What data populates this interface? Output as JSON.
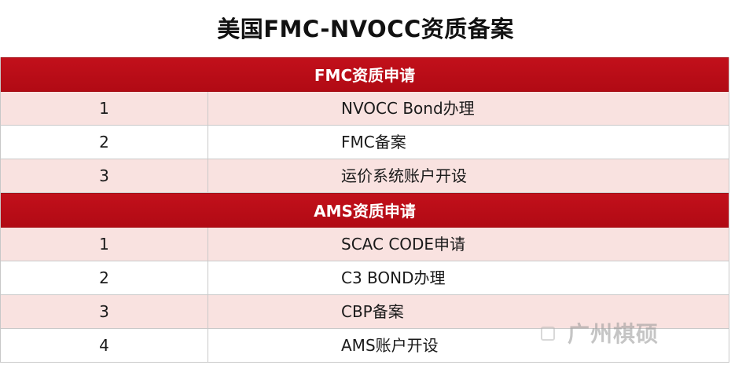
{
  "title": "美国FMC-NVOCC资质备案",
  "sections": [
    {
      "header": "FMC资质申请",
      "rows": [
        {
          "num": "1",
          "item": "NVOCC Bond办理"
        },
        {
          "num": "2",
          "item": "FMC备案"
        },
        {
          "num": "3",
          "item": "运价系统账户开设"
        }
      ]
    },
    {
      "header": "AMS资质申请",
      "rows": [
        {
          "num": "1",
          "item": "SCAC CODE申请"
        },
        {
          "num": "2",
          "item": "C3 BOND办理"
        },
        {
          "num": "3",
          "item": "CBP备案"
        },
        {
          "num": "4",
          "item": "AMS账户开设"
        }
      ]
    }
  ],
  "watermark": "广州棋硕",
  "colors": {
    "header_red": "#c2101b",
    "shaded_row": "#f9e2e0"
  }
}
